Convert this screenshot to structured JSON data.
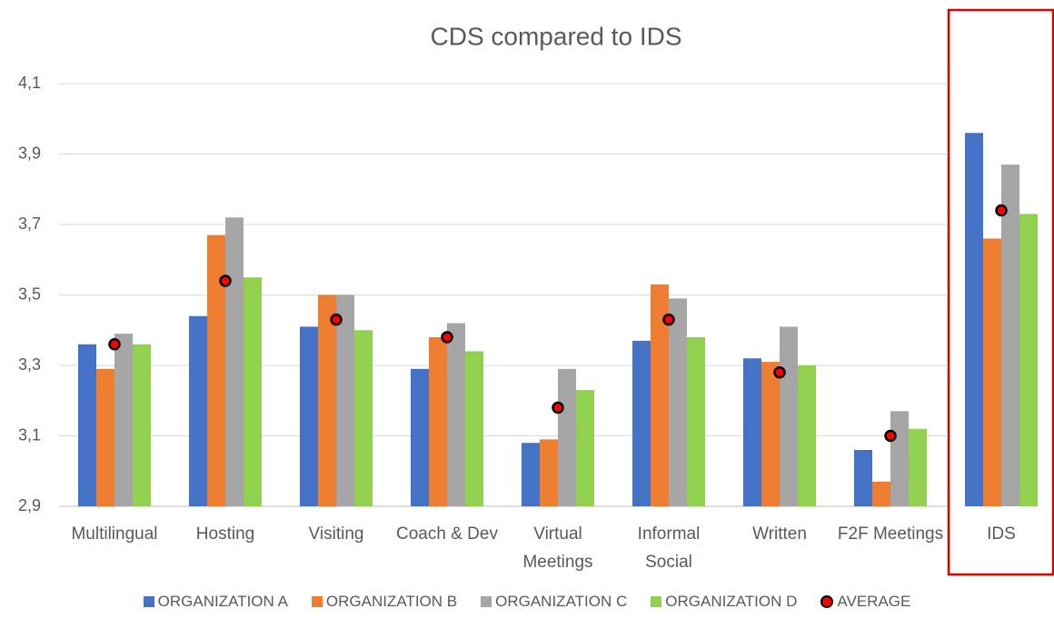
{
  "chart_data": {
    "type": "bar",
    "title": "CDS compared to IDS",
    "categories": [
      "Multilingual",
      "Hosting",
      "Visiting",
      "Coach & Dev",
      "Virtual Meetings",
      "Informal Social",
      "Written",
      "F2F Meetings",
      "IDS"
    ],
    "series": [
      {
        "name": "ORGANIZATION A",
        "color": "#4472c4",
        "values": [
          3.36,
          3.44,
          3.41,
          3.29,
          3.08,
          3.37,
          3.32,
          3.06,
          3.96
        ]
      },
      {
        "name": "ORGANIZATION B",
        "color": "#ed7d31",
        "values": [
          3.29,
          3.67,
          3.5,
          3.38,
          3.09,
          3.53,
          3.31,
          2.97,
          3.66
        ]
      },
      {
        "name": "ORGANIZATION C",
        "color": "#a5a5a5",
        "values": [
          3.39,
          3.72,
          3.5,
          3.42,
          3.29,
          3.49,
          3.41,
          3.17,
          3.87
        ]
      },
      {
        "name": "ORGANIZATION D",
        "color": "#92d050",
        "values": [
          3.36,
          3.55,
          3.4,
          3.34,
          3.23,
          3.38,
          3.3,
          3.12,
          3.73
        ]
      },
      {
        "name": "AVERAGE",
        "type": "scatter",
        "color": "#ff0000",
        "values": [
          3.36,
          3.54,
          3.43,
          3.38,
          3.18,
          3.43,
          3.28,
          3.1,
          3.74
        ]
      }
    ],
    "ylim": [
      2.9,
      4.1
    ],
    "yticks": [
      {
        "value": 2.9,
        "label": "2,9"
      },
      {
        "value": 3.1,
        "label": "3,1"
      },
      {
        "value": 3.3,
        "label": "3,3"
      },
      {
        "value": 3.5,
        "label": "3,5"
      },
      {
        "value": 3.7,
        "label": "3,7"
      },
      {
        "value": 3.9,
        "label": "3,9"
      },
      {
        "value": 4.1,
        "label": "4,1"
      }
    ],
    "grid": true,
    "legend": "bottom"
  }
}
